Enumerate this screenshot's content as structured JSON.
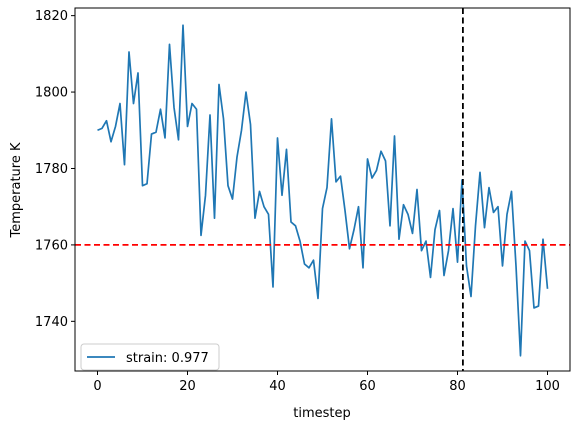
{
  "chart_data": {
    "type": "line",
    "xlabel": "timestep",
    "ylabel": "Temperature K",
    "xlim": [
      -5,
      105
    ],
    "ylim": [
      1727,
      1822
    ],
    "xticks": [
      0,
      20,
      40,
      60,
      80,
      100
    ],
    "yticks": [
      1740,
      1760,
      1780,
      1800,
      1820
    ],
    "grid": false,
    "legend_position": "lower-left",
    "series": [
      {
        "name": "strain: 0.977",
        "color": "#1f77b4",
        "x": [
          0,
          1,
          2,
          3,
          4,
          5,
          6,
          7,
          8,
          9,
          10,
          11,
          12,
          13,
          14,
          15,
          16,
          17,
          18,
          19,
          20,
          21,
          22,
          23,
          24,
          25,
          26,
          27,
          28,
          29,
          30,
          31,
          32,
          33,
          34,
          35,
          36,
          37,
          38,
          39,
          40,
          41,
          42,
          43,
          44,
          45,
          46,
          47,
          48,
          49,
          50,
          51,
          52,
          53,
          54,
          55,
          56,
          57,
          58,
          59,
          60,
          61,
          62,
          63,
          64,
          65,
          66,
          67,
          68,
          69,
          70,
          71,
          72,
          73,
          74,
          75,
          76,
          77,
          78,
          79,
          80,
          81,
          82,
          83,
          84,
          85,
          86,
          87,
          88,
          89,
          90,
          91,
          92,
          93,
          94,
          95,
          96,
          97,
          98,
          99,
          100
        ],
        "y": [
          1790,
          1790.5,
          1792.5,
          1787,
          1791,
          1797,
          1781,
          1810.5,
          1797,
          1805,
          1775.5,
          1776,
          1789,
          1789.5,
          1795.5,
          1788,
          1812.5,
          1796,
          1787.5,
          1817.5,
          1791,
          1797,
          1795.5,
          1762.5,
          1773,
          1794,
          1767,
          1802,
          1793,
          1775.5,
          1772,
          1783,
          1790,
          1800,
          1791.5,
          1767,
          1774,
          1770,
          1768,
          1749,
          1788,
          1773,
          1785,
          1766,
          1765,
          1761,
          1755,
          1754,
          1756,
          1746,
          1769.5,
          1775,
          1793,
          1776.5,
          1778,
          1769,
          1759,
          1764,
          1770,
          1754,
          1782.5,
          1777.5,
          1779.5,
          1784.5,
          1782,
          1765,
          1788.5,
          1761.5,
          1770.5,
          1768,
          1763,
          1774.5,
          1758.5,
          1761,
          1751.5,
          1764,
          1769,
          1752,
          1758.5,
          1769.5,
          1755.5,
          1777,
          1754.5,
          1746.5,
          1765,
          1779,
          1764.5,
          1775,
          1768.5,
          1770,
          1754.5,
          1768,
          1774,
          1754.5,
          1731,
          1761,
          1758.5,
          1743.5,
          1744,
          1761.5,
          1748.5
        ]
      }
    ],
    "reference_lines": [
      {
        "orientation": "horizontal",
        "value": 1760,
        "color": "#ff0000",
        "style": "dashed"
      },
      {
        "orientation": "vertical",
        "value": 81.2,
        "color": "#000000",
        "style": "dashed"
      }
    ]
  }
}
